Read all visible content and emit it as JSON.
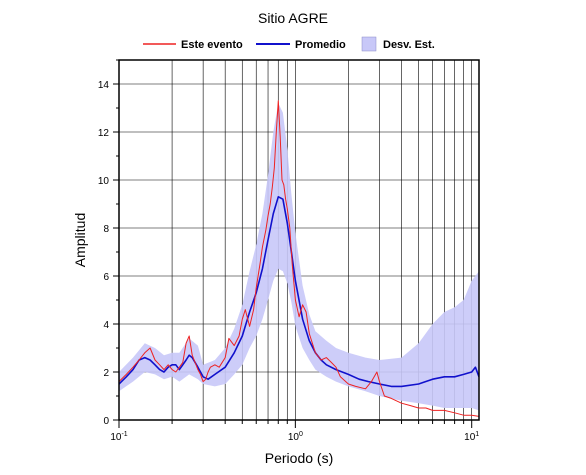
{
  "colors": {
    "event": "#ee2222",
    "mean": "#1111cc",
    "band": "#c8c8f8"
  },
  "chart_data": {
    "type": "line",
    "title": "Sitio AGRE",
    "xlabel": "Periodo (s)",
    "ylabel": "Amplitud",
    "xscale": "log",
    "xlim": [
      0.1,
      11
    ],
    "ylim": [
      0,
      15
    ],
    "grid": true,
    "legend_placement": "top",
    "x_ticks": [
      {
        "value": 0.1,
        "base": "10",
        "exp": "-1"
      },
      {
        "value": 1,
        "base": "10",
        "exp": "0"
      },
      {
        "value": 10,
        "base": "10",
        "exp": "1"
      }
    ],
    "y_ticks": [
      "0",
      "2",
      "4",
      "6",
      "8",
      "10",
      "12",
      "14"
    ],
    "series": [
      {
        "name": "Este evento",
        "x": [
          0.1,
          0.11,
          0.12,
          0.13,
          0.14,
          0.15,
          0.16,
          0.17,
          0.18,
          0.19,
          0.2,
          0.21,
          0.22,
          0.23,
          0.24,
          0.25,
          0.26,
          0.27,
          0.28,
          0.29,
          0.3,
          0.31,
          0.32,
          0.33,
          0.35,
          0.37,
          0.4,
          0.42,
          0.45,
          0.48,
          0.5,
          0.52,
          0.55,
          0.58,
          0.6,
          0.63,
          0.65,
          0.68,
          0.7,
          0.72,
          0.74,
          0.76,
          0.78,
          0.8,
          0.82,
          0.84,
          0.86,
          0.88,
          0.9,
          0.93,
          0.96,
          1.0,
          1.05,
          1.1,
          1.15,
          1.2,
          1.3,
          1.4,
          1.5,
          1.6,
          1.7,
          1.8,
          2.0,
          2.2,
          2.5,
          2.7,
          2.9,
          3.0,
          3.2,
          3.5,
          4.0,
          4.5,
          5.0,
          5.5,
          6.0,
          7.0,
          8.0,
          9.0,
          10.0,
          11.0
        ],
        "values": [
          1.6,
          1.9,
          2.2,
          2.5,
          2.8,
          3.0,
          2.5,
          2.3,
          2.1,
          2.3,
          2.1,
          2.0,
          2.2,
          2.4,
          3.2,
          3.5,
          2.7,
          2.4,
          2.1,
          1.9,
          1.6,
          1.7,
          2.0,
          2.2,
          2.3,
          2.2,
          2.6,
          3.4,
          3.1,
          3.5,
          4.2,
          4.6,
          3.9,
          4.6,
          5.5,
          6.5,
          7.2,
          7.9,
          8.5,
          9.0,
          9.7,
          10.5,
          12.0,
          13.3,
          11.8,
          10.0,
          9.8,
          9.2,
          8.8,
          8.0,
          6.5,
          5.0,
          4.3,
          4.8,
          4.5,
          3.6,
          2.8,
          2.5,
          2.6,
          2.4,
          2.2,
          1.8,
          1.5,
          1.4,
          1.3,
          1.6,
          2.0,
          1.6,
          1.0,
          0.9,
          0.7,
          0.6,
          0.5,
          0.5,
          0.4,
          0.4,
          0.3,
          0.2,
          0.2,
          0.15
        ]
      },
      {
        "name": "Promedio",
        "x": [
          0.1,
          0.11,
          0.12,
          0.13,
          0.14,
          0.15,
          0.16,
          0.17,
          0.18,
          0.19,
          0.2,
          0.21,
          0.22,
          0.23,
          0.24,
          0.25,
          0.26,
          0.27,
          0.28,
          0.29,
          0.3,
          0.32,
          0.35,
          0.4,
          0.45,
          0.5,
          0.55,
          0.6,
          0.65,
          0.7,
          0.75,
          0.8,
          0.85,
          0.9,
          0.95,
          1.0,
          1.1,
          1.2,
          1.3,
          1.4,
          1.5,
          1.7,
          2.0,
          2.3,
          2.6,
          3.0,
          3.5,
          4.0,
          5.0,
          6.0,
          7.0,
          8.0,
          9.0,
          10.0,
          10.5,
          11.0
        ],
        "values": [
          1.5,
          1.8,
          2.1,
          2.5,
          2.6,
          2.5,
          2.3,
          2.1,
          2.0,
          2.2,
          2.3,
          2.3,
          2.1,
          2.3,
          2.5,
          2.7,
          2.6,
          2.4,
          2.2,
          2.0,
          1.8,
          1.7,
          1.9,
          2.2,
          2.8,
          3.5,
          4.5,
          5.3,
          6.3,
          7.5,
          8.6,
          9.3,
          9.2,
          8.2,
          7.0,
          5.8,
          4.2,
          3.3,
          2.8,
          2.5,
          2.3,
          2.1,
          1.9,
          1.7,
          1.6,
          1.5,
          1.4,
          1.4,
          1.5,
          1.7,
          1.8,
          1.8,
          1.9,
          2.0,
          2.2,
          1.8
        ]
      },
      {
        "name": "Desv. Est.",
        "x": [
          0.1,
          0.12,
          0.14,
          0.16,
          0.18,
          0.2,
          0.22,
          0.25,
          0.28,
          0.3,
          0.35,
          0.4,
          0.45,
          0.5,
          0.55,
          0.6,
          0.65,
          0.7,
          0.75,
          0.8,
          0.85,
          0.9,
          0.95,
          1.0,
          1.1,
          1.2,
          1.3,
          1.5,
          1.7,
          2.0,
          2.5,
          3.0,
          4.0,
          5.0,
          6.0,
          7.0,
          8.0,
          9.0,
          10.0,
          11.0
        ],
        "lower": [
          1.2,
          1.6,
          2.0,
          1.9,
          1.7,
          1.8,
          1.6,
          1.9,
          1.7,
          1.5,
          1.4,
          1.5,
          1.9,
          2.3,
          3.0,
          3.5,
          4.2,
          5.0,
          5.8,
          6.3,
          6.2,
          5.7,
          4.9,
          3.9,
          3.0,
          2.5,
          2.1,
          1.8,
          1.6,
          1.4,
          1.2,
          1.0,
          0.8,
          0.7,
          0.6,
          0.5,
          0.5,
          0.5,
          0.5,
          0.4
        ],
        "upper": [
          2.0,
          2.6,
          3.2,
          3.0,
          2.7,
          2.8,
          2.8,
          3.4,
          3.1,
          2.3,
          2.5,
          3.0,
          3.8,
          4.8,
          6.2,
          7.3,
          8.6,
          10.2,
          12.0,
          13.2,
          12.8,
          11.3,
          9.4,
          7.8,
          5.6,
          4.4,
          3.7,
          3.3,
          3.0,
          2.8,
          2.6,
          2.5,
          2.6,
          3.2,
          4.0,
          4.5,
          4.7,
          5.0,
          5.8,
          6.2
        ]
      }
    ]
  }
}
